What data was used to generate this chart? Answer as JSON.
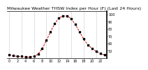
{
  "title": "Milwaukee Weather THSW Index per Hour (F) (Last 24 Hours)",
  "hours": [
    0,
    1,
    2,
    3,
    4,
    5,
    6,
    7,
    8,
    9,
    10,
    11,
    12,
    13,
    14,
    15,
    16,
    17,
    18,
    19,
    20,
    21,
    22,
    23
  ],
  "values": [
    44,
    43,
    42,
    42,
    41,
    41,
    42,
    45,
    53,
    64,
    76,
    87,
    95,
    98,
    98,
    94,
    86,
    76,
    66,
    58,
    53,
    49,
    46,
    44
  ],
  "ylim": [
    40,
    105
  ],
  "yticks": [
    50,
    60,
    70,
    80,
    90,
    100
  ],
  "ytick_labels": [
    "50",
    "60",
    "70",
    "80",
    "90",
    "100"
  ],
  "xtick_positions": [
    0,
    2,
    4,
    6,
    8,
    10,
    12,
    14,
    16,
    18,
    20,
    22
  ],
  "xtick_labels": [
    "0",
    "2",
    "4",
    "6",
    "8",
    "10",
    "12",
    "14",
    "16",
    "18",
    "20",
    "22"
  ],
  "vgrid_positions": [
    0,
    3,
    6,
    9,
    12,
    15,
    18,
    21
  ],
  "line_color": "#cc0000",
  "marker_color": "#000000",
  "grid_color": "#999999",
  "bg_color": "#ffffff",
  "plot_bg_color": "#ffffff",
  "title_fontsize": 4.5,
  "tick_fontsize": 3.5,
  "ytick_fontsize": 3.5
}
